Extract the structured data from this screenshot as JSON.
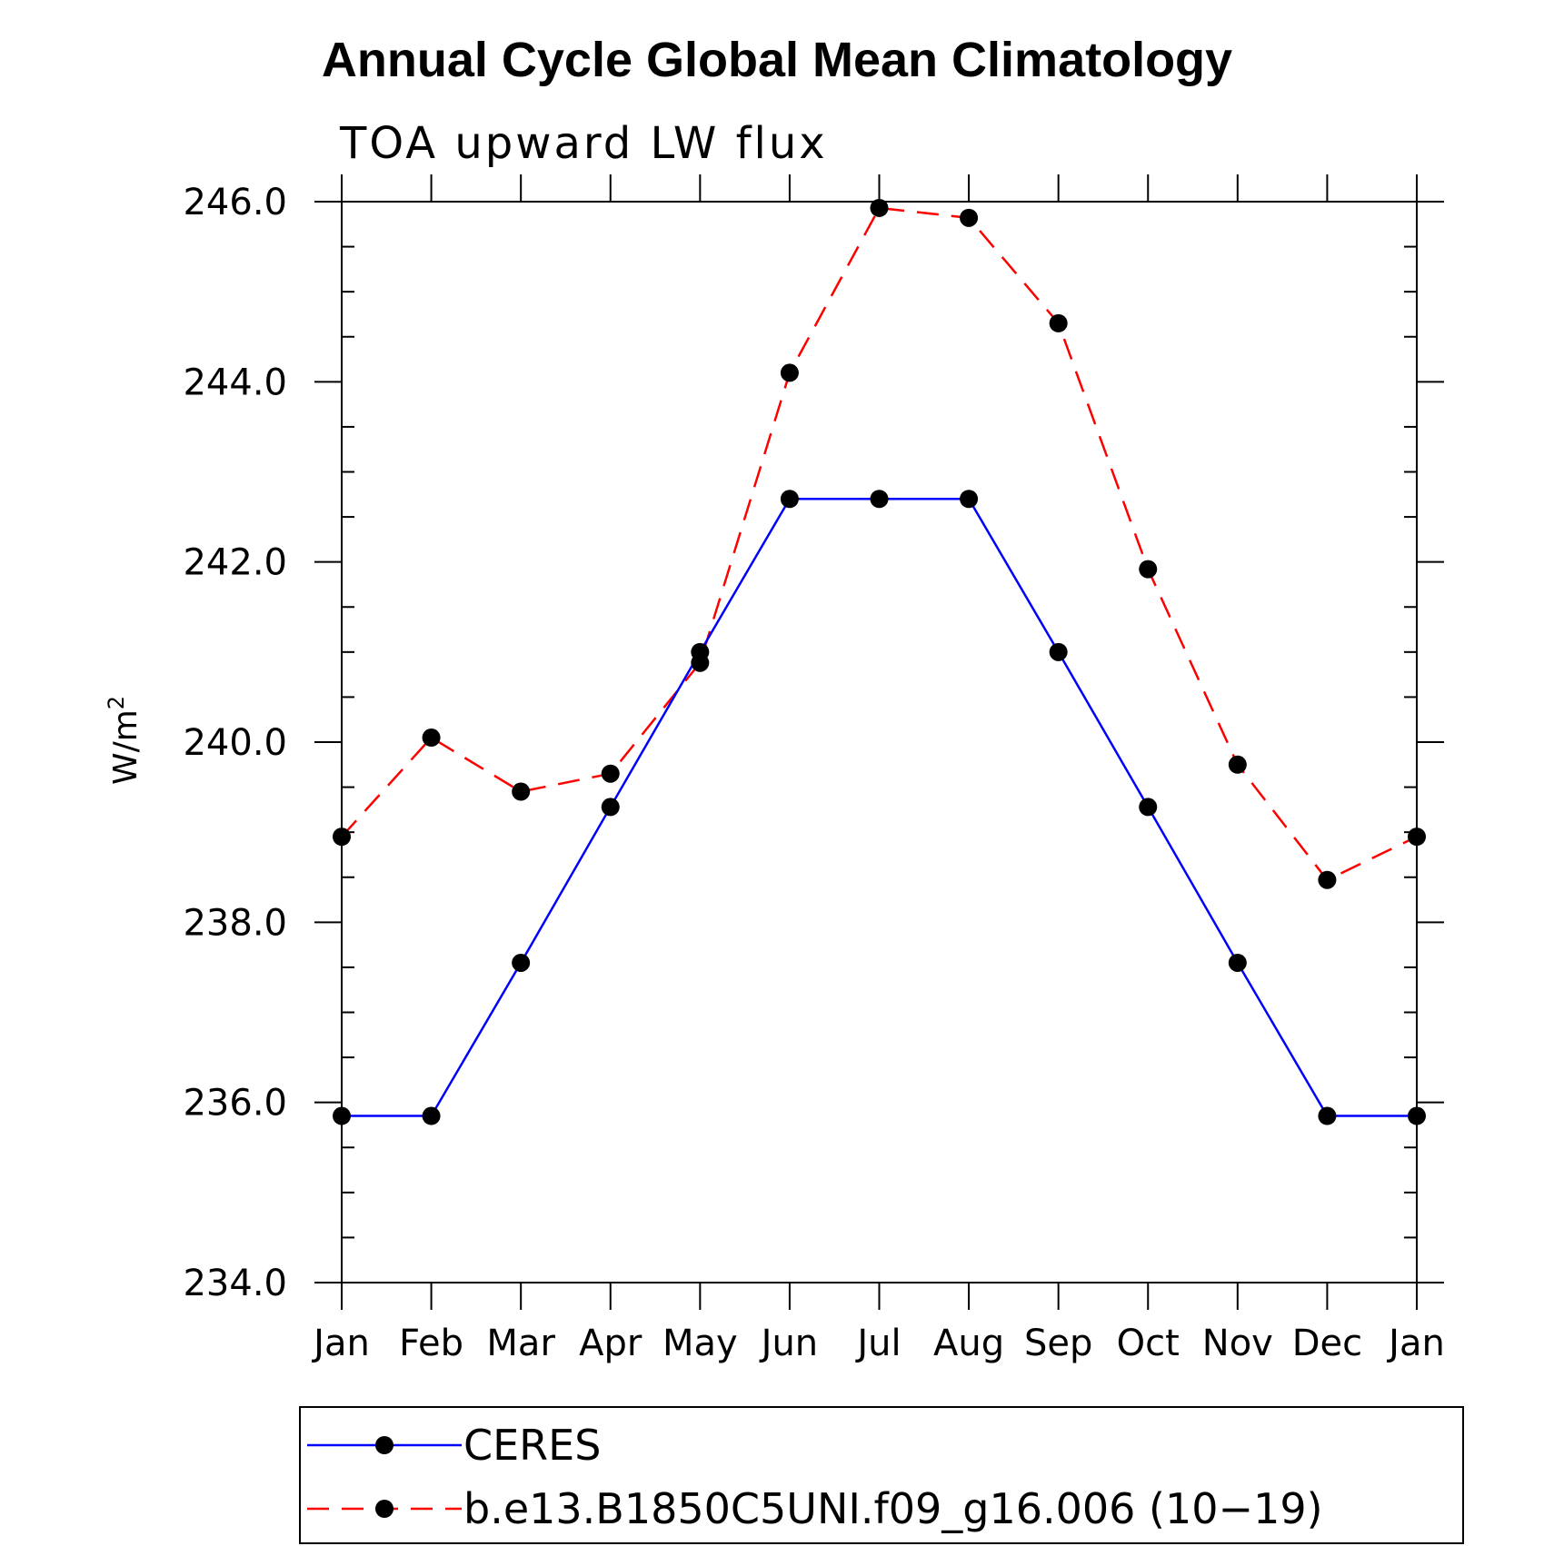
{
  "chart_data": {
    "type": "line",
    "title": "Annual Cycle Global Mean Climatology",
    "subtitle": "TOA upward LW flux",
    "xlabel": "",
    "ylabel": "W/m",
    "ylabel_superscript": "2",
    "categories": [
      "Jan",
      "Feb",
      "Mar",
      "Apr",
      "May",
      "Jun",
      "Jul",
      "Aug",
      "Sep",
      "Oct",
      "Nov",
      "Dec",
      "Jan"
    ],
    "ylim": [
      234.0,
      246.0
    ],
    "yticks": [
      "234.0",
      "236.0",
      "238.0",
      "240.0",
      "242.0",
      "244.0",
      "246.0"
    ],
    "grid": false,
    "legend_position": "bottom",
    "series": [
      {
        "name": "CERES",
        "color": "#0000ff",
        "line_style": "solid",
        "marker": "filled-circle",
        "values": [
          235.85,
          235.85,
          237.55,
          239.28,
          241.0,
          242.7,
          242.7,
          242.7,
          241.0,
          239.28,
          237.55,
          235.85,
          235.85
        ]
      },
      {
        "name": "b.e13.B1850C5UNI.f09_g16.006 (10−19)",
        "color": "#ff0000",
        "line_style": "dashed",
        "marker": "filled-circle",
        "values": [
          238.95,
          240.05,
          239.45,
          239.65,
          240.88,
          244.1,
          245.93,
          245.82,
          244.65,
          241.92,
          239.75,
          238.47,
          238.95
        ]
      }
    ]
  }
}
